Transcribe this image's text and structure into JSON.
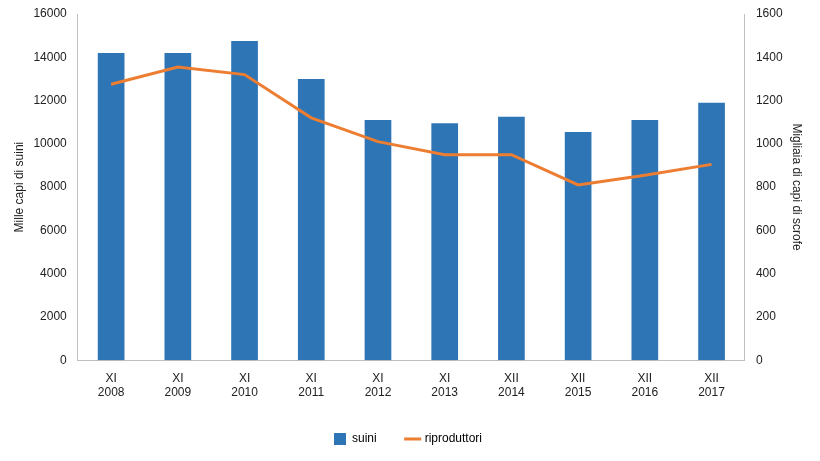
{
  "chart_data": {
    "type": "bar",
    "categories": [
      [
        "XI",
        "2008"
      ],
      [
        "XI",
        "2009"
      ],
      [
        "XI",
        "2010"
      ],
      [
        "XI",
        "2011"
      ],
      [
        "XI",
        "2012"
      ],
      [
        "XI",
        "2013"
      ],
      [
        "XII",
        "2014"
      ],
      [
        "XII",
        "2015"
      ],
      [
        "XII",
        "2016"
      ],
      [
        "XII",
        "2017"
      ]
    ],
    "series": [
      {
        "name": "suini",
        "type": "bar",
        "color": "#2e75b6",
        "values": [
          14200,
          14200,
          14750,
          13000,
          11100,
          10950,
          11250,
          10550,
          11100,
          11900
        ]
      },
      {
        "name": "riproduttori",
        "type": "line",
        "color": "#ed7d31",
        "axis": "y2",
        "values": [
          1275,
          1355,
          1320,
          1120,
          1010,
          950,
          950,
          810,
          855,
          905
        ]
      }
    ],
    "y_label": "Mille capi di suini",
    "y2_label": "Migliaia di capi di scrofe",
    "ylim": [
      0,
      16000
    ],
    "yticks": [
      0,
      2000,
      4000,
      6000,
      8000,
      10000,
      12000,
      14000,
      16000
    ],
    "y2lim": [
      0,
      1600
    ],
    "y2ticks": [
      0,
      200,
      400,
      600,
      800,
      1000,
      1200,
      1400,
      1600
    ],
    "grid": false,
    "legend": "bottom"
  }
}
